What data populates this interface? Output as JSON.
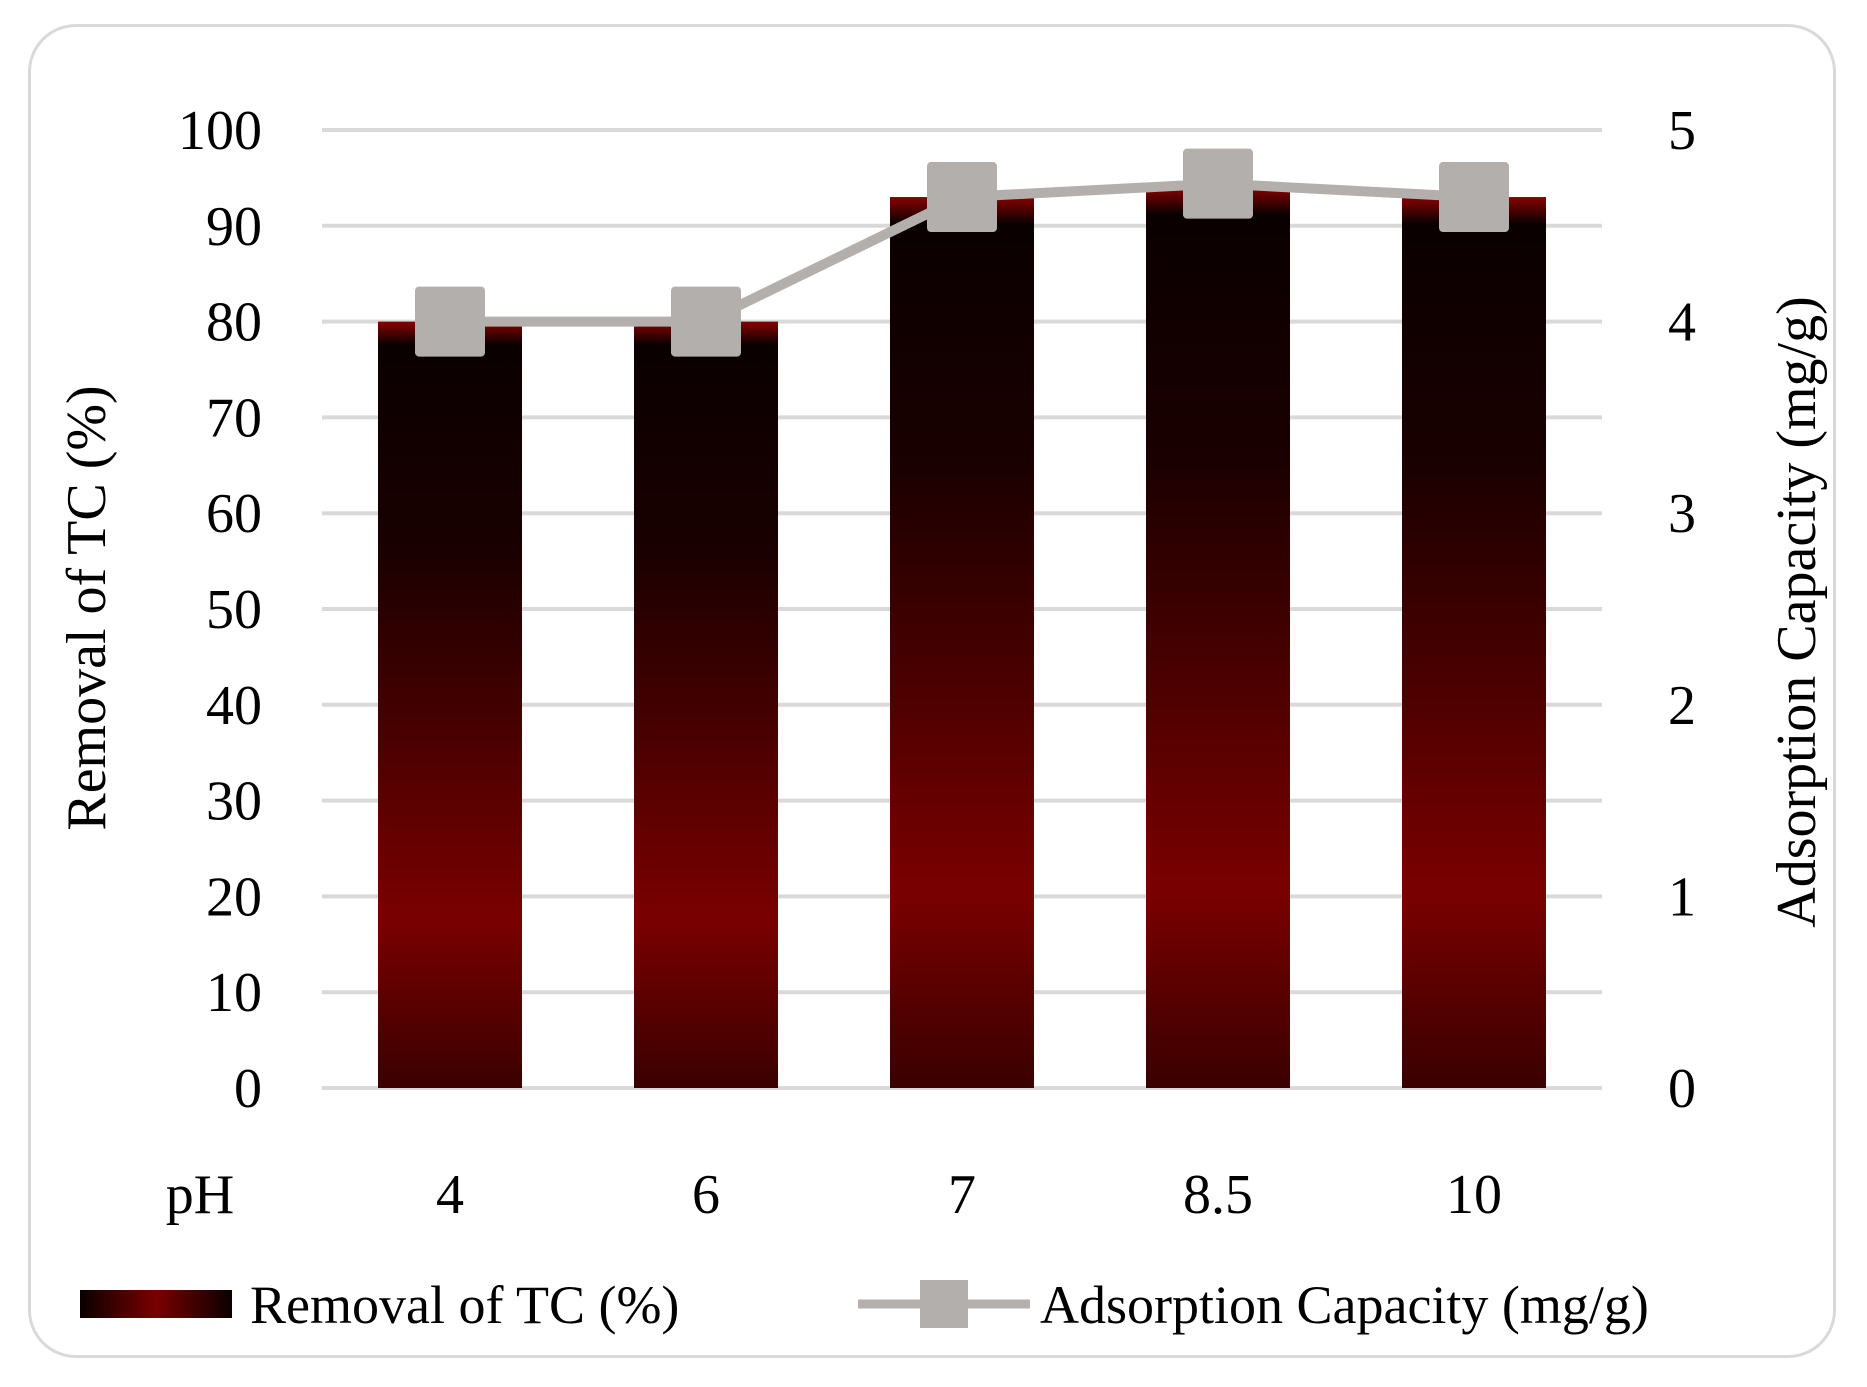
{
  "chart_data": {
    "type": "bar",
    "x_label": "pH",
    "categories": [
      "4",
      "6",
      "7",
      "8.5",
      "10"
    ],
    "series": [
      {
        "name": "Removal of TC (%)",
        "type": "bar",
        "axis": "left",
        "values": [
          80,
          80,
          93,
          94,
          93
        ],
        "colors": {
          "dark": "#0a0000",
          "mid": "#7a0000",
          "bottom": "#3a0000"
        }
      },
      {
        "name": "Adsorption Capacity (mg/g)",
        "type": "line",
        "axis": "right",
        "values": [
          4.0,
          4.0,
          4.65,
          4.72,
          4.65
        ],
        "color": "#b3afad"
      }
    ],
    "y_left": {
      "label": "Removal of TC (%)",
      "range": [
        0,
        100
      ],
      "ticks": [
        "0",
        "10",
        "20",
        "30",
        "40",
        "50",
        "60",
        "70",
        "80",
        "90",
        "100"
      ]
    },
    "y_right": {
      "label": "Adsorption Capacity (mg/g)",
      "range": [
        0,
        5
      ],
      "ticks": [
        "0",
        "1",
        "2",
        "3",
        "4",
        "5"
      ]
    },
    "grid": true,
    "legend_position": "bottom"
  }
}
